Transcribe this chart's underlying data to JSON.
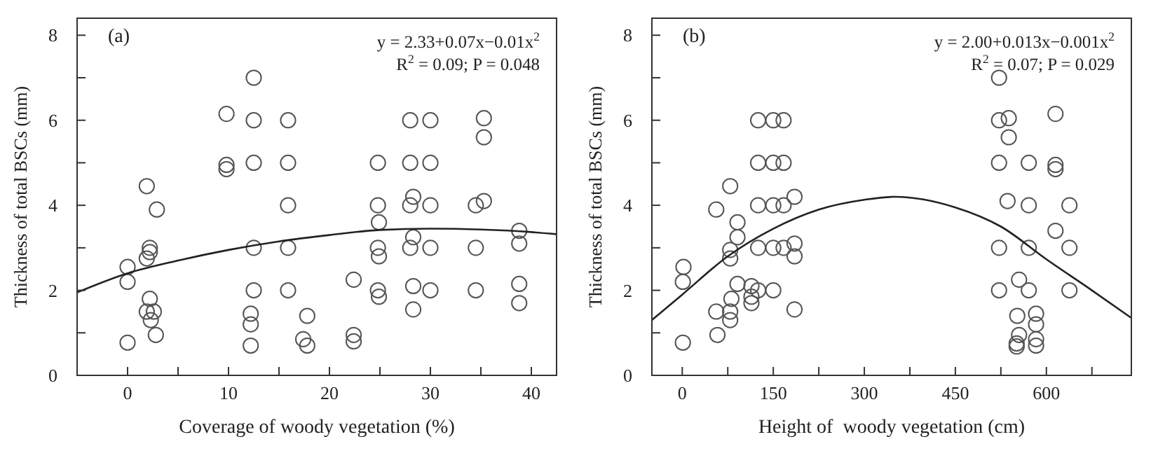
{
  "chart_data": [
    {
      "type": "scatter",
      "xlabel": "Coverage of woody vegetation (%)",
      "ylabel": "Thickness of total BSCs (mm)",
      "xlim": [
        -5,
        42.5
      ],
      "ylim": [
        0,
        8.4
      ],
      "xticks": [
        0,
        {
          "value": 5,
          "label": null
        },
        10,
        {
          "value": 15,
          "label": null
        },
        20,
        {
          "value": 25,
          "label": null
        },
        30,
        {
          "value": 35,
          "label": null
        },
        40
      ],
      "yticks": [
        0,
        {
          "value": 1,
          "label": null
        },
        2,
        {
          "value": 3,
          "label": null
        },
        4,
        {
          "value": 5,
          "label": null
        },
        6,
        {
          "value": 7,
          "label": null
        },
        8
      ],
      "grid": false,
      "annotations": [
        "(a)",
        "y = 2.33+0.07x−0.01x$^{2}$",
        "R$^{2}$ = 0.09; P = 0.048"
      ],
      "series": [
        {
          "marker": "circle",
          "color": "#555555",
          "x": [
            0,
            0,
            0,
            1.9,
            2.2,
            2.2,
            1.9,
            2.2,
            1.9,
            2.6,
            2.3,
            2.9,
            2.8,
            9.8,
            9.8,
            9.8,
            12.5,
            12.5,
            12.5,
            12.5,
            12.5,
            12.2,
            12.2,
            12.2,
            15.9,
            15.9,
            15.9,
            15.9,
            15.9,
            17.8,
            17.4,
            17.8,
            22.4,
            22.4,
            22.4,
            24.8,
            24.8,
            24.9,
            24.8,
            24.9,
            24.8,
            24.9,
            28,
            28,
            28,
            28.3,
            28.3,
            28,
            28.3,
            28.3,
            30,
            30,
            30,
            30,
            30,
            34.5,
            34.5,
            34.5,
            35.3,
            35.3,
            35.3,
            38.8,
            38.8,
            38.8,
            38.8
          ],
          "values": [
            2.55,
            2.2,
            0.77,
            4.45,
            3.0,
            2.9,
            2.75,
            1.8,
            1.5,
            1.5,
            1.3,
            3.9,
            0.95,
            6.15,
            4.95,
            4.85,
            7.0,
            6.0,
            5.0,
            3.0,
            2.0,
            1.45,
            1.2,
            0.7,
            6.0,
            5.0,
            4.0,
            3.0,
            2.0,
            1.4,
            0.85,
            0.7,
            2.25,
            0.95,
            0.8,
            5.0,
            4.0,
            3.6,
            3.0,
            2.8,
            2.0,
            1.85,
            6.0,
            5.0,
            4.0,
            4.2,
            3.25,
            3.0,
            2.1,
            1.55,
            6.0,
            5.0,
            4.0,
            3.0,
            2.0,
            4.0,
            3.0,
            2.0,
            6.05,
            5.6,
            4.1,
            3.4,
            3.1,
            2.15,
            1.7
          ]
        },
        {
          "type": "line",
          "color": "#222222",
          "line_style": "solid",
          "x": [
            -5,
            0,
            5,
            10,
            15,
            20,
            25,
            30,
            35,
            40,
            42.5
          ],
          "values": [
            1.95,
            2.4,
            2.7,
            2.95,
            3.15,
            3.3,
            3.42,
            3.45,
            3.43,
            3.37,
            3.32
          ]
        }
      ]
    },
    {
      "type": "scatter",
      "xlabel": "Height of  woody vegetation (cm)",
      "ylabel": "Thickness of total BSCs (mm)",
      "xlim": [
        -50,
        740
      ],
      "ylim": [
        0,
        8.4
      ],
      "xticks": [
        0,
        {
          "value": 75,
          "label": null
        },
        150,
        {
          "value": 225,
          "label": null
        },
        300,
        {
          "value": 375,
          "label": null
        },
        450,
        {
          "value": 525,
          "label": null
        },
        600,
        {
          "value": 675,
          "label": null
        }
      ],
      "yticks": [
        0,
        {
          "value": 1,
          "label": null
        },
        2,
        {
          "value": 3,
          "label": null
        },
        4,
        {
          "value": 5,
          "label": null
        },
        6,
        {
          "value": 7,
          "label": null
        },
        8
      ],
      "grid": false,
      "annotations": [
        "(b)",
        "y = 2.00+0.013x−0.001x$^{2}$",
        "R$^{2}$ = 0.07; P = 0.029"
      ],
      "series": [
        {
          "marker": "circle",
          "color": "#555555",
          "x": [
            2,
            1,
            1,
            56,
            56,
            58,
            79,
            79,
            79,
            81,
            79,
            79,
            91,
            91,
            91,
            114,
            114,
            114,
            125,
            125,
            125,
            125,
            125,
            150,
            150,
            150,
            150,
            150,
            167,
            167,
            167,
            167,
            185,
            185,
            185,
            185,
            522,
            522,
            522,
            522,
            522,
            538,
            538,
            536,
            552,
            555,
            555,
            551,
            551,
            571,
            571,
            571,
            571,
            583,
            583,
            583,
            583,
            615,
            615,
            615,
            615,
            638,
            638,
            638
          ],
          "values": [
            2.55,
            2.2,
            0.77,
            3.9,
            1.5,
            0.95,
            4.45,
            2.95,
            2.75,
            1.8,
            1.5,
            1.3,
            3.6,
            3.25,
            2.15,
            2.1,
            1.85,
            1.7,
            6,
            5,
            4,
            3,
            2,
            6,
            5,
            4,
            3,
            2,
            6,
            5,
            4,
            3,
            4.2,
            3.1,
            2.8,
            1.55,
            7,
            6,
            5,
            3,
            2,
            6.05,
            5.6,
            4.1,
            1.4,
            2.25,
            0.95,
            0.75,
            0.68,
            5,
            4,
            3,
            2,
            1.45,
            1.2,
            0.85,
            0.7,
            6.15,
            4.95,
            4.85,
            3.4,
            4,
            3,
            2
          ]
        },
        {
          "type": "line",
          "color": "#222222",
          "line_style": "solid",
          "x": [
            -50,
            0,
            75,
            150,
            225,
            300,
            350,
            450,
            525,
            600,
            675,
            740
          ],
          "values": [
            1.3,
            1.9,
            2.8,
            3.45,
            3.9,
            4.13,
            4.2,
            3.95,
            3.5,
            2.73,
            2.0,
            1.35
          ]
        }
      ]
    }
  ]
}
